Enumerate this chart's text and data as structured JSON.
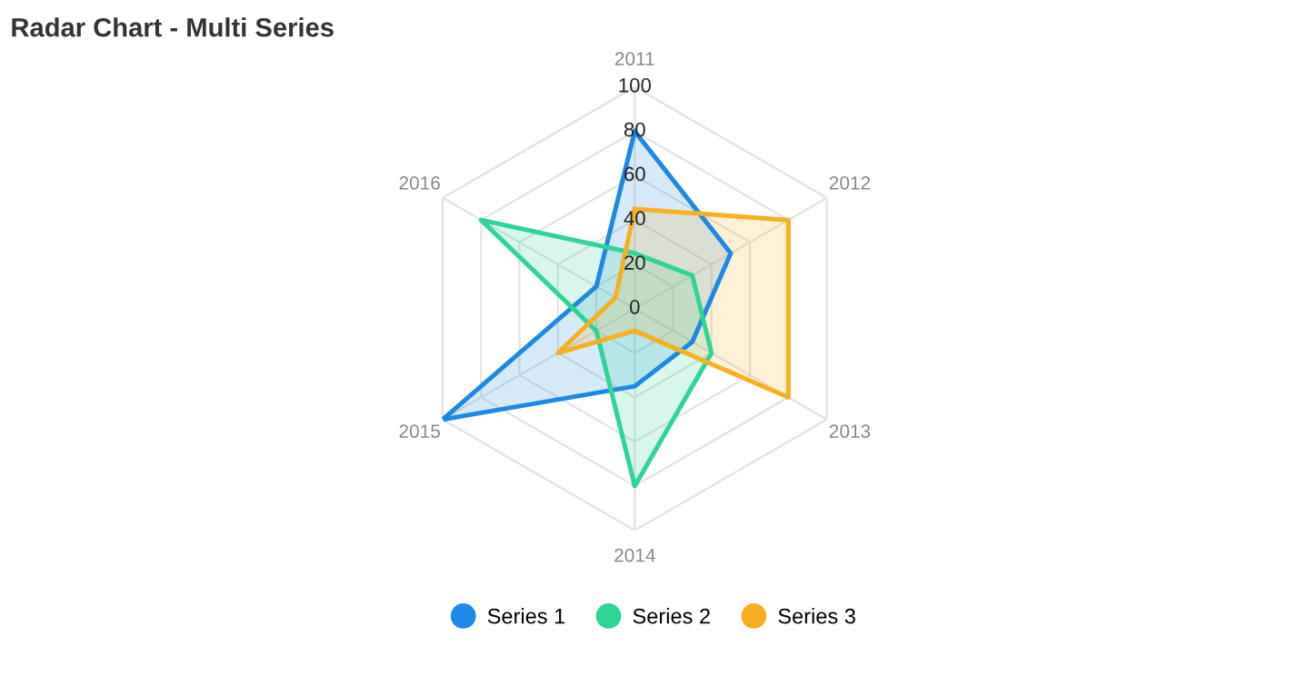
{
  "chart_data": {
    "type": "radar",
    "title": "Radar Chart - Multi Series",
    "categories": [
      "2011",
      "2012",
      "2013",
      "2014",
      "2015",
      "2016"
    ],
    "series": [
      {
        "name": "Series 1",
        "color": "#1e88e5",
        "values": [
          80,
          50,
          30,
          35,
          100,
          20
        ]
      },
      {
        "name": "Series 2",
        "color": "#2fd596",
        "values": [
          25,
          30,
          40,
          80,
          20,
          80
        ]
      },
      {
        "name": "Series 3",
        "color": "#f6b021",
        "values": [
          45,
          80,
          80,
          10,
          40,
          10
        ]
      }
    ],
    "ylim": [
      0,
      100
    ],
    "yticks": [
      0,
      20,
      40,
      60,
      80,
      100
    ],
    "grid": true,
    "legend": "bottom"
  }
}
